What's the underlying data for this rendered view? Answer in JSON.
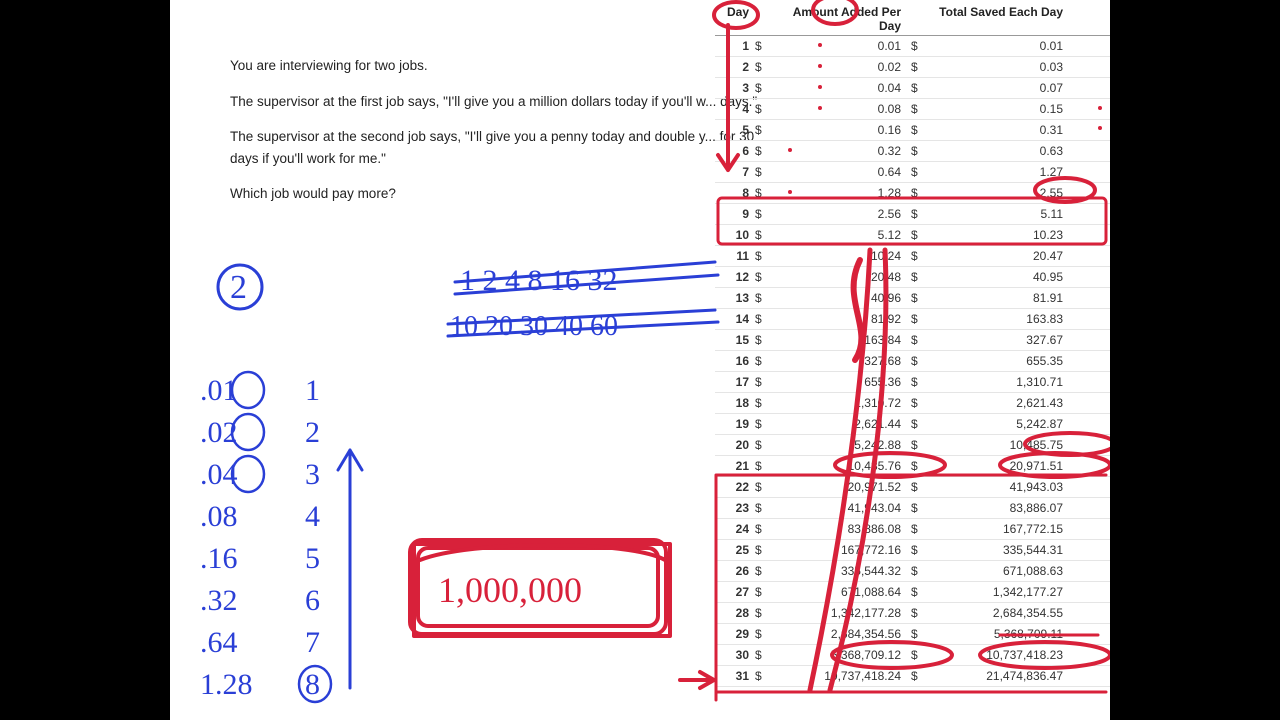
{
  "problem": {
    "p1": "You are interviewing for two jobs.",
    "p2": "The supervisor at the first job says, \"I'll give you a million dollars today if you'll w... days.\"",
    "p3": "The supervisor at the second job says, \"I'll give you a penny today and double y... for 30 days if you'll work for me.\"",
    "p4": "Which job would pay more?"
  },
  "table": {
    "headers": {
      "day": "Day",
      "amount": "Amount Added Per Day",
      "total": "Total Saved Each Day"
    },
    "dollar": "$",
    "rows": [
      {
        "day": "1",
        "amt": "0.01",
        "tot": "0.01"
      },
      {
        "day": "2",
        "amt": "0.02",
        "tot": "0.03"
      },
      {
        "day": "3",
        "amt": "0.04",
        "tot": "0.07"
      },
      {
        "day": "4",
        "amt": "0.08",
        "tot": "0.15"
      },
      {
        "day": "5",
        "amt": "0.16",
        "tot": "0.31"
      },
      {
        "day": "6",
        "amt": "0.32",
        "tot": "0.63"
      },
      {
        "day": "7",
        "amt": "0.64",
        "tot": "1.27"
      },
      {
        "day": "8",
        "amt": "1.28",
        "tot": "2.55"
      },
      {
        "day": "9",
        "amt": "2.56",
        "tot": "5.11"
      },
      {
        "day": "10",
        "amt": "5.12",
        "tot": "10.23"
      },
      {
        "day": "11",
        "amt": "10.24",
        "tot": "20.47"
      },
      {
        "day": "12",
        "amt": "20.48",
        "tot": "40.95"
      },
      {
        "day": "13",
        "amt": "40.96",
        "tot": "81.91"
      },
      {
        "day": "14",
        "amt": "81.92",
        "tot": "163.83"
      },
      {
        "day": "15",
        "amt": "163.84",
        "tot": "327.67"
      },
      {
        "day": "16",
        "amt": "327.68",
        "tot": "655.35"
      },
      {
        "day": "17",
        "amt": "655.36",
        "tot": "1,310.71"
      },
      {
        "day": "18",
        "amt": "1,310.72",
        "tot": "2,621.43"
      },
      {
        "day": "19",
        "amt": "2,621.44",
        "tot": "5,242.87"
      },
      {
        "day": "20",
        "amt": "5,242.88",
        "tot": "10,485.75"
      },
      {
        "day": "21",
        "amt": "10,485.76",
        "tot": "20,971.51"
      },
      {
        "day": "22",
        "amt": "20,971.52",
        "tot": "41,943.03"
      },
      {
        "day": "23",
        "amt": "41,943.04",
        "tot": "83,886.07"
      },
      {
        "day": "24",
        "amt": "83,886.08",
        "tot": "167,772.15"
      },
      {
        "day": "25",
        "amt": "167,772.16",
        "tot": "335,544.31"
      },
      {
        "day": "26",
        "amt": "335,544.32",
        "tot": "671,088.63"
      },
      {
        "day": "27",
        "amt": "671,088.64",
        "tot": "1,342,177.27"
      },
      {
        "day": "28",
        "amt": "1,342,177.28",
        "tot": "2,684,354.55"
      },
      {
        "day": "29",
        "amt": "2,684,354.56",
        "tot": "5,368,709.11"
      },
      {
        "day": "30",
        "amt": "5,368,709.12",
        "tot": "10,737,418.23"
      },
      {
        "day": "31",
        "amt": "10,737,418.24",
        "tot": "21,474,836.47"
      }
    ]
  },
  "hand": {
    "blue": {
      "circle2": "2",
      "seq_top": "1 2 4 8 16 32",
      "seq_bot": "10 20 30 40   60",
      "list": [
        {
          "v": ".01",
          "n": "1"
        },
        {
          "v": ".02",
          "n": "2"
        },
        {
          "v": ".04",
          "n": "3"
        },
        {
          "v": ".08",
          "n": "4"
        },
        {
          "v": ".16",
          "n": "5"
        },
        {
          "v": ".32",
          "n": "6"
        },
        {
          "v": ".64",
          "n": "7"
        },
        {
          "v": "1.28",
          "n": "8"
        }
      ]
    },
    "red": {
      "million": "1,000,000"
    },
    "colors": {
      "blue": "#2a3fd6",
      "red": "#d8213a"
    }
  }
}
